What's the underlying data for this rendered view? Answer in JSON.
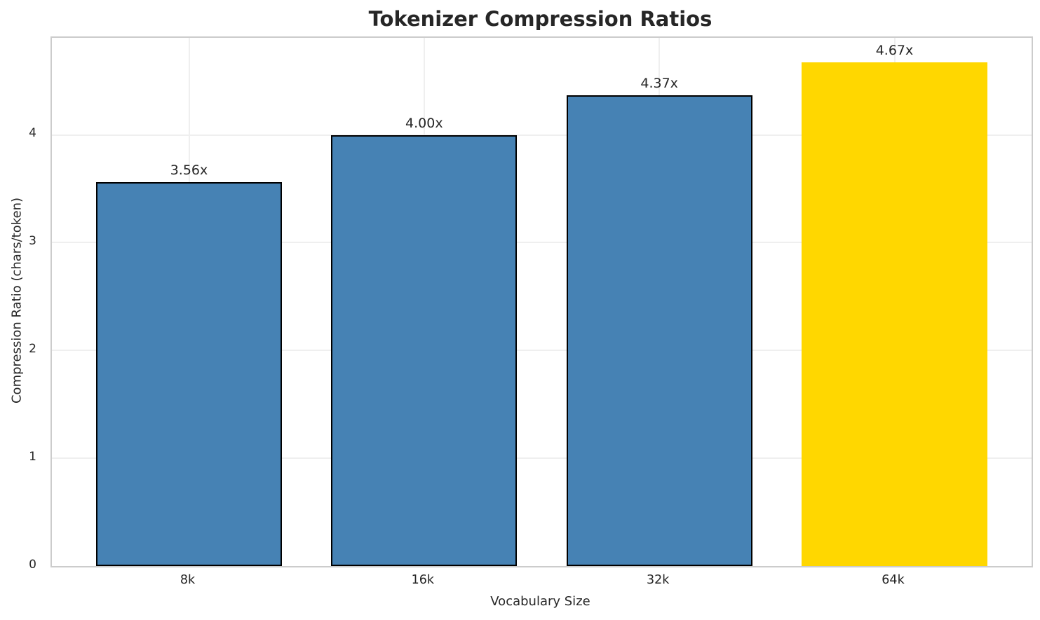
{
  "chart_data": {
    "type": "bar",
    "title": "Tokenizer Compression Ratios",
    "xlabel": "Vocabulary Size",
    "ylabel": "Compression Ratio (chars/token)",
    "categories": [
      "8k",
      "16k",
      "32k",
      "64k"
    ],
    "values": [
      3.56,
      4.0,
      4.37,
      4.67
    ],
    "bar_labels": [
      "3.56x",
      "4.00x",
      "4.37x",
      "4.67x"
    ],
    "yticks": [
      0,
      1,
      2,
      3,
      4
    ],
    "ylim": [
      0,
      4.9
    ],
    "grid": true,
    "legend": "none",
    "bar_colors": [
      "#4682b4",
      "#4682b4",
      "#4682b4",
      "#ffd700"
    ],
    "bar_edge_colors": [
      "#000000",
      "#000000",
      "#000000",
      "none"
    ],
    "colors": {
      "highlight_gold": "#ffd700",
      "series_blue": "#4682b4",
      "bar_edge": "#000000",
      "gridline": "#efefef",
      "spine": "#cccccc",
      "text": "#262626"
    }
  }
}
